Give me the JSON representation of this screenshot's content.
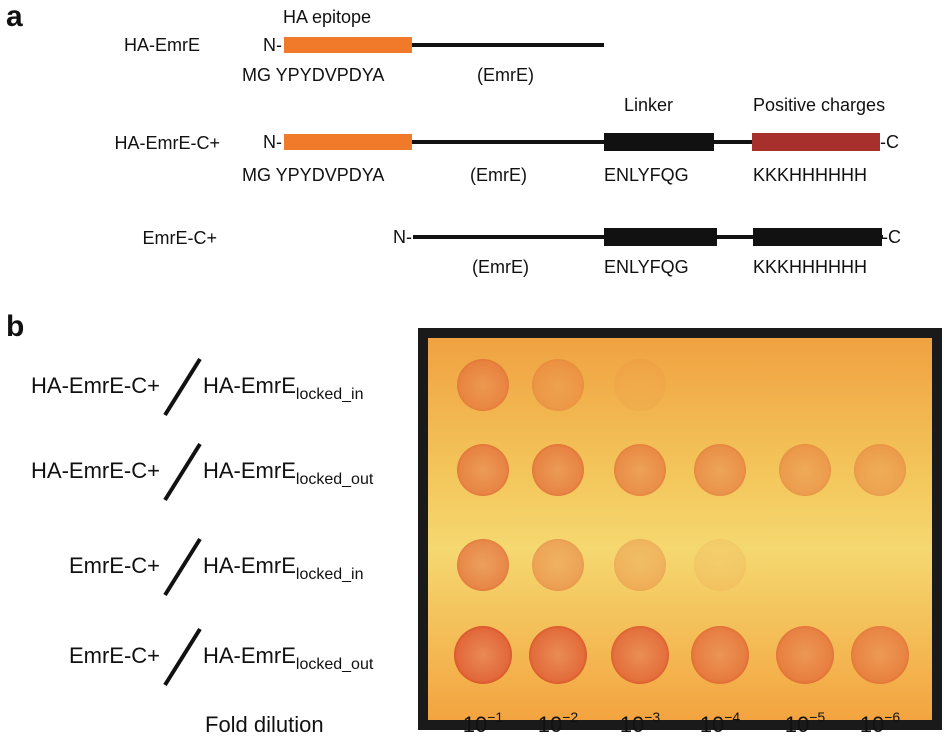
{
  "panel_a": {
    "label": "a",
    "constructs": [
      {
        "name": "HA-EmrE",
        "n_term": "N-",
        "epitope_title": "HA epitope",
        "epitope_seq": "MG YPYDVPDYA",
        "core": "(EmrE)"
      },
      {
        "name": "HA-EmrE-C+",
        "n_term": "N-",
        "c_term": "-C",
        "epitope_seq": "MG YPYDVPDYA",
        "core": "(EmrE)",
        "linker_title": "Linker",
        "linker_seq": "ENLYFQG",
        "charge_title": "Positive charges",
        "charge_seq": "KKKHHHHHH"
      },
      {
        "name": "EmrE-C+",
        "n_term": "N-",
        "c_term": "-C",
        "core": "(EmrE)",
        "linker_seq": "ENLYFQG",
        "charge_seq": "KKKHHHHHH"
      }
    ]
  },
  "panel_b": {
    "label": "b",
    "rows": [
      {
        "left": "HA-EmrE-C+",
        "right": "HA-EmrE",
        "subscript": "locked_in"
      },
      {
        "left": "HA-EmrE-C+",
        "right": "HA-EmrE",
        "subscript": "locked_out"
      },
      {
        "left": "EmrE-C+",
        "right": "HA-EmrE",
        "subscript": "locked_in"
      },
      {
        "left": "EmrE-C+",
        "right": "HA-EmrE",
        "subscript": "locked_out"
      }
    ],
    "axis_label": "Fold dilution",
    "dilutions": [
      {
        "base": "10",
        "exponent": "−1"
      },
      {
        "base": "10",
        "exponent": "−2"
      },
      {
        "base": "10",
        "exponent": "−3"
      },
      {
        "base": "10",
        "exponent": "−4"
      },
      {
        "base": "10",
        "exponent": "−5"
      },
      {
        "base": "10",
        "exponent": "−6"
      }
    ]
  }
}
